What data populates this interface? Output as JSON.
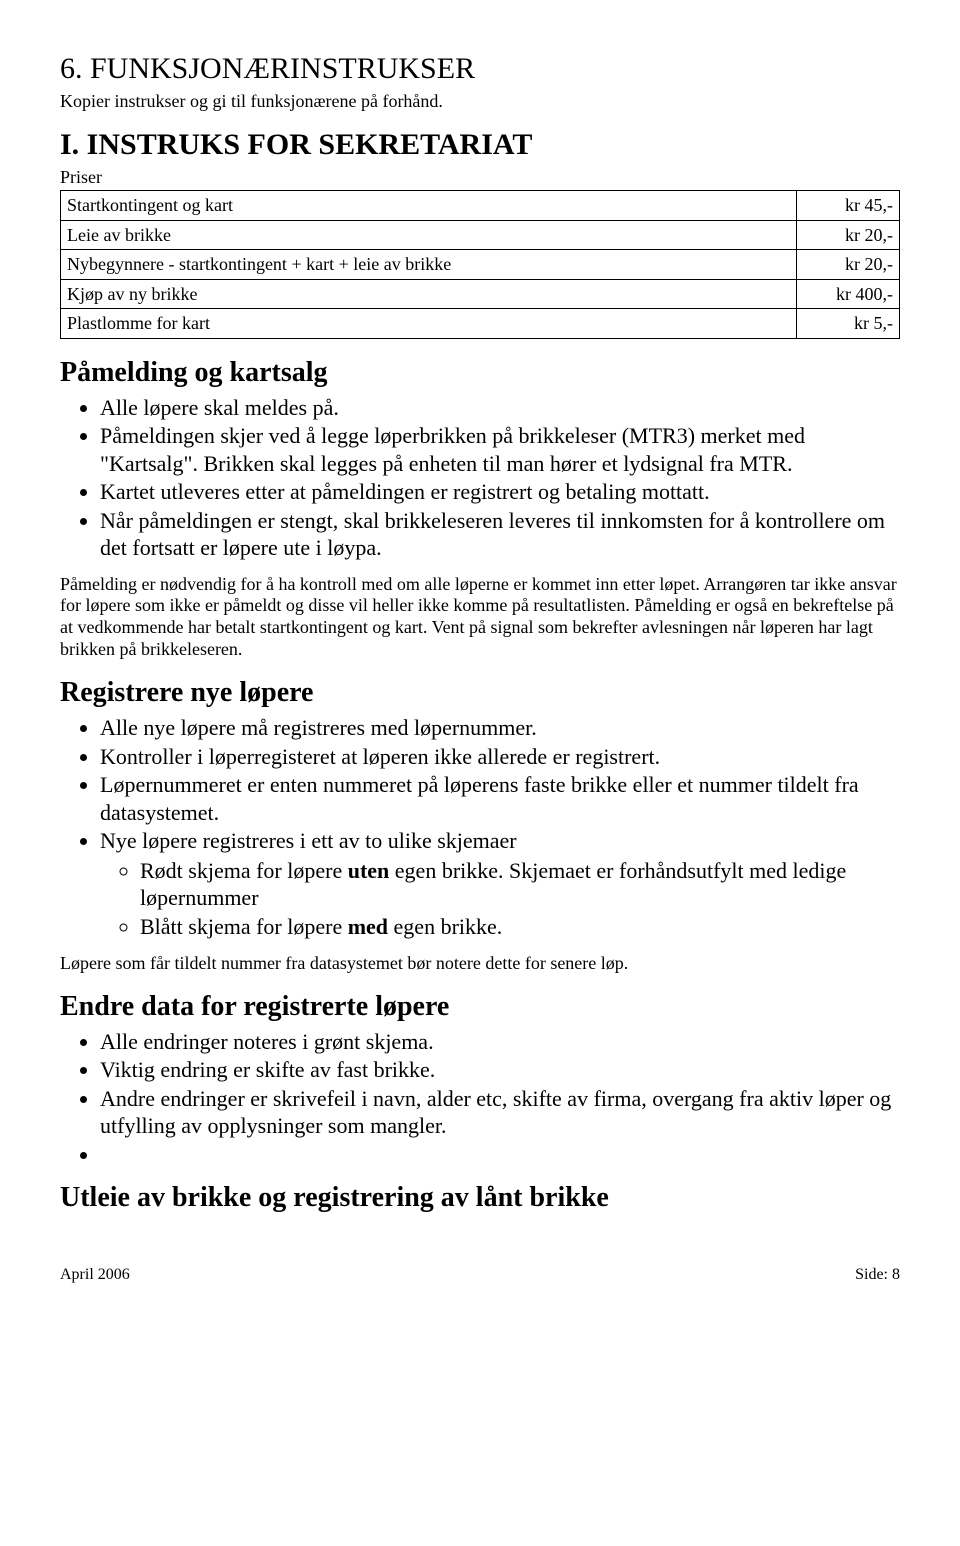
{
  "section_number": "6. FUNKSJONÆRINSTRUKSER",
  "section_sub": "Kopier instrukser og gi til funksjonærene på forhånd.",
  "instruks_title": "I. INSTRUKS FOR SEKRETARIAT",
  "priser_label": "Priser",
  "price_rows": [
    {
      "label": "Startkontingent og kart",
      "value": "kr   45,-"
    },
    {
      "label": "Leie av brikke",
      "value": "kr   20,-"
    },
    {
      "label": "Nybegynnere - startkontingent + kart + leie av brikke",
      "value": "kr   20,-"
    },
    {
      "label": "Kjøp av ny brikke",
      "value": "kr 400,-"
    },
    {
      "label": "Plastlomme for kart",
      "value": "kr     5,-"
    }
  ],
  "pamelding": {
    "heading": "Påmelding og kartsalg",
    "items": [
      "Alle løpere skal meldes på.",
      "Påmeldingen skjer ved å legge løperbrikken på brikkeleser (MTR3) merket med \"Kartsalg\". Brikken skal legges på enheten til man hører et lydsignal fra MTR.",
      "Kartet utleveres etter at påmeldingen er registrert og betaling mottatt.",
      "Når påmeldingen er stengt, skal brikkeleseren leveres til innkomsten for å kontrollere om det fortsatt er løpere ute i løypa."
    ],
    "para": "Påmelding er nødvendig for å ha kontroll med om alle løperne er kommet inn etter løpet. Arrangøren tar ikke ansvar for løpere som ikke er påmeldt og disse vil heller ikke komme på resultatlisten. Påmelding er også en bekreftelse på at vedkommende har betalt startkontingent og kart. Vent på signal som bekrefter avlesningen når løperen har lagt brikken på brikkeleseren."
  },
  "registrere": {
    "heading": "Registrere nye løpere",
    "items": [
      "Alle nye løpere må registreres med løpernummer.",
      "Kontroller i løperregisteret at løperen ikke allerede er registrert.",
      "Løpernummeret er enten nummeret på løperens faste brikke eller et nummer tildelt fra datasystemet.",
      "Nye løpere registreres i ett av to ulike skjemaer"
    ],
    "sub": [
      {
        "pre": "Rødt skjema for løpere ",
        "bold": "uten",
        "post": " egen brikke. Skjemaet er forhåndsutfylt med ledige løpernummer"
      },
      {
        "pre": "Blått skjema for løpere ",
        "bold": "med",
        "post": " egen brikke."
      }
    ],
    "para": "Løpere som får tildelt nummer fra datasystemet bør notere dette for senere løp."
  },
  "endre": {
    "heading": "Endre data for registrerte løpere",
    "items": [
      "Alle endringer noteres i grønt skjema.",
      "Viktig endring er skifte av fast brikke.",
      "Andre endringer er skrivefeil i navn, alder etc, skifte av firma, overgang fra aktiv løper og utfylling av opplysninger som mangler.",
      ""
    ]
  },
  "utleie_heading": "Utleie av brikke og registrering av lånt brikke",
  "footer_left": "April 2006",
  "footer_right": "Side: 8"
}
